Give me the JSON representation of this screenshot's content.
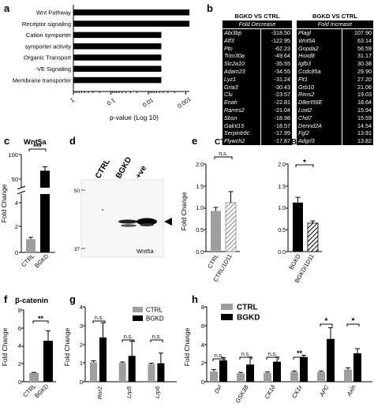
{
  "panel_labels": {
    "a": "a",
    "b": "b",
    "c": "c",
    "d": "d",
    "e": "e",
    "f": "f",
    "g": "g",
    "h": "h"
  },
  "panel_a": {
    "xlabel": "p-value (Log 10)",
    "ticks": [
      "1",
      "0.1",
      "0.01",
      "0.001"
    ]
  },
  "panel_b": {
    "left": {
      "title": "BGKD VS CTRL",
      "header": "Fold Decrease",
      "rows": [
        [
          "Abi3bp",
          "-318.50"
        ],
        [
          "Aff3",
          "-122.95"
        ],
        [
          "Ptn",
          "-62.23"
        ],
        [
          "Trim30a",
          "-49.64"
        ],
        [
          "Slc2a10",
          "-35.55"
        ],
        [
          "Adam23",
          "-34.55"
        ],
        [
          "Lyz1",
          "-31.24"
        ],
        [
          "Gria3",
          "-30.43"
        ],
        [
          "Clu",
          "-23.57"
        ],
        [
          "Enah",
          "-22.81"
        ],
        [
          "Rarres2",
          "-21.04"
        ],
        [
          "Sbsn",
          "-18.98"
        ],
        [
          "Galnt15",
          "-18.57"
        ],
        [
          "Serpinb9c",
          "-17.99"
        ],
        [
          "Flywch2",
          "-17.87"
        ]
      ]
    },
    "right": {
      "title": "BGKD VS CTRL",
      "header": "Fold Increase",
      "rows": [
        [
          "Plagl",
          "107.90"
        ],
        [
          "Wnt5A",
          "63.14"
        ],
        [
          "Gnpda2",
          "56.59"
        ],
        [
          "Hoxd8",
          "31.17"
        ],
        [
          "Igfb3",
          "30.38"
        ],
        [
          "Ccdc85a",
          "29.90"
        ],
        [
          "Flt1",
          "27.20"
        ],
        [
          "Grb10",
          "21.06"
        ],
        [
          "Rims2",
          "19.03"
        ],
        [
          "D8ert56E",
          "18.64"
        ],
        [
          "Loxl2",
          "15.94"
        ],
        [
          "Chd7",
          "15.59"
        ],
        [
          "Dennd2A",
          "14.54"
        ],
        [
          "Fgl2",
          "13.91"
        ],
        [
          "Adgrl3",
          "13.82"
        ]
      ]
    }
  },
  "panel_c": {
    "title": "Wnt5a",
    "ylabel": "Fold Change",
    "y_ticks_low": [
      "0",
      "2",
      "4"
    ],
    "y_ticks_high": [
      "50",
      "100"
    ],
    "categories": [
      "CTRL",
      "BGKD"
    ],
    "sig": "***"
  },
  "panel_d": {
    "lanes": [
      "CTRL",
      "BGKD",
      "+ve"
    ],
    "markers": [
      "50",
      "37"
    ],
    "protein": "Wnt5a"
  },
  "panel_e": {
    "title_left": "CTRL",
    "title_right": "BGKD",
    "ylabel": "Fold Change",
    "y_ticks": [
      "0.0",
      "0.5",
      "1.0",
      "1.5",
      "2.0"
    ],
    "left_categories": [
      "CTRL",
      "CTRL/1D11"
    ],
    "right_categories": [
      "BGKD",
      "BGKD/1D11"
    ],
    "sig_left": "n.s.",
    "sig_right": "*"
  },
  "panel_f": {
    "title": "β-catenin",
    "ylabel": "Fold Change",
    "y_ticks": [
      "0",
      "2",
      "4",
      "6",
      "8"
    ],
    "categories": [
      "CTRL",
      "BGKD"
    ],
    "sig": "**"
  },
  "panel_g": {
    "ylabel": "Fold Change",
    "y_ticks": [
      "0",
      "1",
      "2",
      "3",
      "4"
    ],
    "categories": [
      "Ror2",
      "Lrp5",
      "Lrp6"
    ],
    "sigs": [
      "n.s.",
      "n.s.",
      "n.s."
    ]
  },
  "panel_h": {
    "ylabel": "Fold Change",
    "y_ticks": [
      "0",
      "2",
      "4",
      "6",
      "8"
    ],
    "categories": [
      "Dvl",
      "GSK3B",
      "CK1δ",
      "CK1ε",
      "APC",
      "Axin"
    ],
    "sigs": [
      "n.s.",
      "n.s.",
      "n.s.",
      "**",
      "*",
      "*"
    ]
  },
  "legend": {
    "ctrl": "CTRL",
    "bgkd": "BGKD"
  },
  "colors": {
    "ctrl": "#9e9e9e",
    "bgkd": "#000000"
  },
  "chart_data": [
    {
      "type": "bar",
      "panel": "a",
      "orientation": "horizontal",
      "xscale": "log",
      "xlabel": "p-value (Log 10)",
      "categories": [
        "Wnt Pathway",
        "Receptor signaling",
        "Cation symporter",
        "symporter activity",
        "Organic Transport",
        "-VE Signaling",
        "Membrane transporter"
      ],
      "values": [
        0.0008,
        0.0008,
        0.0045,
        0.0045,
        0.0045,
        0.0045,
        0.0045
      ]
    },
    {
      "type": "bar",
      "panel": "c",
      "title": "Wnt5a",
      "ylabel": "Fold Change",
      "categories": [
        "CTRL",
        "BGKD"
      ],
      "values": [
        1.1,
        67
      ],
      "errors": [
        0.15,
        8
      ]
    },
    {
      "type": "bar",
      "panel": "e-left",
      "title": "CTRL",
      "ylabel": "Fold Change",
      "categories": [
        "CTRL",
        "CTRL/1D11"
      ],
      "values": [
        0.93,
        1.12
      ],
      "errors": [
        0.08,
        0.25
      ],
      "ylim": [
        0,
        2
      ]
    },
    {
      "type": "bar",
      "panel": "e-right",
      "title": "BGKD",
      "ylabel": "Fold Change",
      "categories": [
        "BGKD",
        "BGKD/1D11"
      ],
      "values": [
        1.12,
        0.65
      ],
      "errors": [
        0.12,
        0.05
      ],
      "ylim": [
        0,
        2
      ]
    },
    {
      "type": "bar",
      "panel": "f",
      "title": "β-catenin",
      "ylabel": "Fold Change",
      "categories": [
        "CTRL",
        "BGKD"
      ],
      "values": [
        1.0,
        4.6
      ],
      "errors": [
        0.05,
        1.1
      ],
      "ylim": [
        0,
        8
      ]
    },
    {
      "type": "bar",
      "panel": "g",
      "ylabel": "Fold Change",
      "categories": [
        "Ror2",
        "Lrp5",
        "Lrp6"
      ],
      "series": [
        {
          "name": "CTRL",
          "values": [
            1.05,
            1.02,
            0.95
          ],
          "errors": [
            0.08,
            0.05,
            0.05
          ]
        },
        {
          "name": "BGKD",
          "values": [
            2.4,
            1.4,
            1.0
          ],
          "errors": [
            0.8,
            0.8,
            0.55
          ]
        }
      ],
      "ylim": [
        0,
        4
      ]
    },
    {
      "type": "bar",
      "panel": "h",
      "ylabel": "Fold Change",
      "categories": [
        "Dvl",
        "GSK3B",
        "CK1δ",
        "CK1ε",
        "APC",
        "Axin"
      ],
      "series": [
        {
          "name": "CTRL",
          "values": [
            1.1,
            0.9,
            0.95,
            1.05,
            1.05,
            1.3
          ],
          "errors": [
            0.2,
            0.1,
            0.1,
            0.1,
            0.1,
            0.2
          ]
        },
        {
          "name": "BGKD",
          "values": [
            2.3,
            1.85,
            2.15,
            2.65,
            4.6,
            3.05
          ],
          "errors": [
            0.3,
            0.8,
            0.5,
            0.2,
            1.2,
            0.5
          ]
        }
      ],
      "ylim": [
        0,
        8
      ]
    }
  ]
}
